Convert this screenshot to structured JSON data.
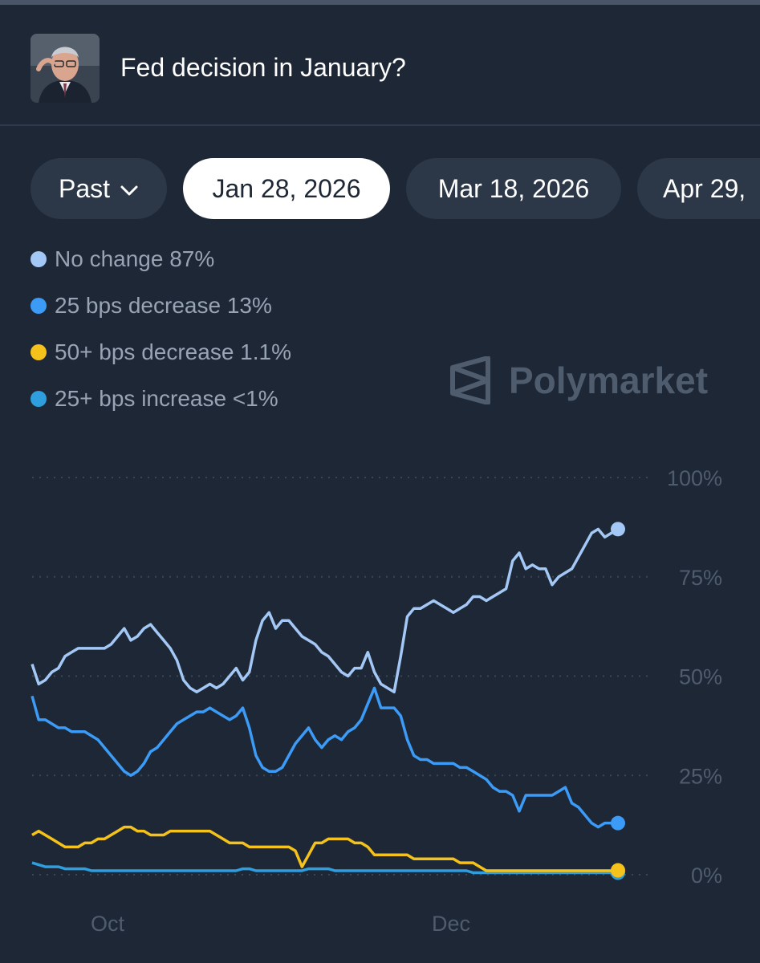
{
  "header": {
    "title": "Fed decision in January?",
    "avatar_icon": "person-portrait-icon"
  },
  "tabs": [
    {
      "label": "Past",
      "active": false,
      "has_dropdown": true
    },
    {
      "label": "Jan 28, 2026",
      "active": true
    },
    {
      "label": "Mar 18, 2026",
      "active": false
    },
    {
      "label": "Apr 29,",
      "active": false
    }
  ],
  "legend": [
    {
      "label": "No change 87%",
      "color": "#a4c8f6"
    },
    {
      "label": "25 bps decrease 13%",
      "color": "#3b9bf6"
    },
    {
      "label": "50+ bps decrease 1.1%",
      "color": "#f4c21a"
    },
    {
      "label": "25+ bps increase <1%",
      "color": "#2f9ede"
    }
  ],
  "watermark": "Polymarket",
  "chart_data": {
    "type": "line",
    "x_tick_labels": [
      "Oct",
      "Dec"
    ],
    "y_ticks": [
      "100%",
      "75%",
      "50%",
      "25%",
      "0%"
    ],
    "ylim": [
      0,
      100
    ],
    "grid": true,
    "series": [
      {
        "name": "No change",
        "color": "#a4c8f6",
        "values": [
          53,
          48,
          49,
          51,
          52,
          55,
          56,
          57,
          57,
          57,
          57,
          57,
          58,
          60,
          62,
          59,
          60,
          62,
          63,
          61,
          59,
          57,
          54,
          49,
          47,
          46,
          47,
          48,
          47,
          48,
          50,
          52,
          49,
          51,
          59,
          64,
          66,
          62,
          64,
          64,
          62,
          60,
          59,
          58,
          56,
          55,
          53,
          51,
          50,
          52,
          52,
          56,
          51,
          48,
          47,
          46,
          55,
          65,
          67,
          67,
          68,
          69,
          68,
          67,
          66,
          67,
          68,
          70,
          70,
          69,
          70,
          71,
          72,
          79,
          81,
          77,
          78,
          77,
          77,
          73,
          75,
          76,
          77,
          80,
          83,
          86,
          87,
          85,
          86,
          87
        ]
      },
      {
        "name": "25 bps decrease",
        "color": "#3b9bf6",
        "values": [
          45,
          39,
          39,
          38,
          37,
          37,
          36,
          36,
          36,
          35,
          34,
          32,
          30,
          28,
          26,
          25,
          26,
          28,
          31,
          32,
          34,
          36,
          38,
          39,
          40,
          41,
          41,
          42,
          41,
          40,
          39,
          40,
          42,
          37,
          30,
          27,
          26,
          26,
          27,
          30,
          33,
          35,
          37,
          34,
          32,
          34,
          35,
          34,
          36,
          37,
          39,
          43,
          47,
          42,
          42,
          42,
          40,
          34,
          30,
          29,
          29,
          28,
          28,
          28,
          28,
          27,
          27,
          26,
          25,
          24,
          22,
          21,
          21,
          20,
          16,
          20,
          20,
          20,
          20,
          20,
          21,
          22,
          18,
          17,
          15,
          13,
          12,
          13,
          13,
          13
        ]
      },
      {
        "name": "50+ bps decrease",
        "color": "#f4c21a",
        "values": [
          10,
          11,
          10,
          9,
          8,
          7,
          7,
          7,
          8,
          8,
          9,
          9,
          10,
          11,
          12,
          12,
          11,
          11,
          10,
          10,
          10,
          11,
          11,
          11,
          11,
          11,
          11,
          11,
          10,
          9,
          8,
          8,
          8,
          7,
          7,
          7,
          7,
          7,
          7,
          7,
          6,
          2,
          5,
          8,
          8,
          9,
          9,
          9,
          9,
          8,
          8,
          7,
          5,
          5,
          5,
          5,
          5,
          5,
          4,
          4,
          4,
          4,
          4,
          4,
          4,
          3,
          3,
          3,
          2,
          1,
          1,
          1,
          1,
          1,
          1,
          1,
          1,
          1,
          1,
          1,
          1,
          1,
          1,
          1,
          1,
          1,
          1,
          1,
          1,
          1.1
        ]
      },
      {
        "name": "25+ bps increase",
        "color": "#2f9ede",
        "values": [
          3,
          2.5,
          2,
          2,
          2,
          1.5,
          1.5,
          1.5,
          1.5,
          1,
          1,
          1,
          1,
          1,
          1,
          1,
          1,
          1,
          1,
          1,
          1,
          1,
          1,
          1,
          1,
          1,
          1,
          1,
          1,
          1,
          1,
          1,
          1.5,
          1.5,
          1,
          1,
          1,
          1,
          1,
          1,
          1,
          1,
          1.5,
          1.5,
          1.5,
          1.5,
          1,
          1,
          1,
          1,
          1,
          1,
          1,
          1,
          1,
          1,
          1,
          1,
          1,
          1,
          1,
          1,
          1,
          1,
          1,
          1,
          1,
          0.5,
          0.5,
          0.5,
          0.5,
          0.5,
          0.5,
          0.5,
          0.5,
          0.5,
          0.5,
          0.5,
          0.5,
          0.5,
          0.5,
          0.5,
          0.5,
          0.5,
          0.5,
          0.5,
          0.5,
          0.5,
          0.5,
          0.5
        ]
      }
    ]
  }
}
